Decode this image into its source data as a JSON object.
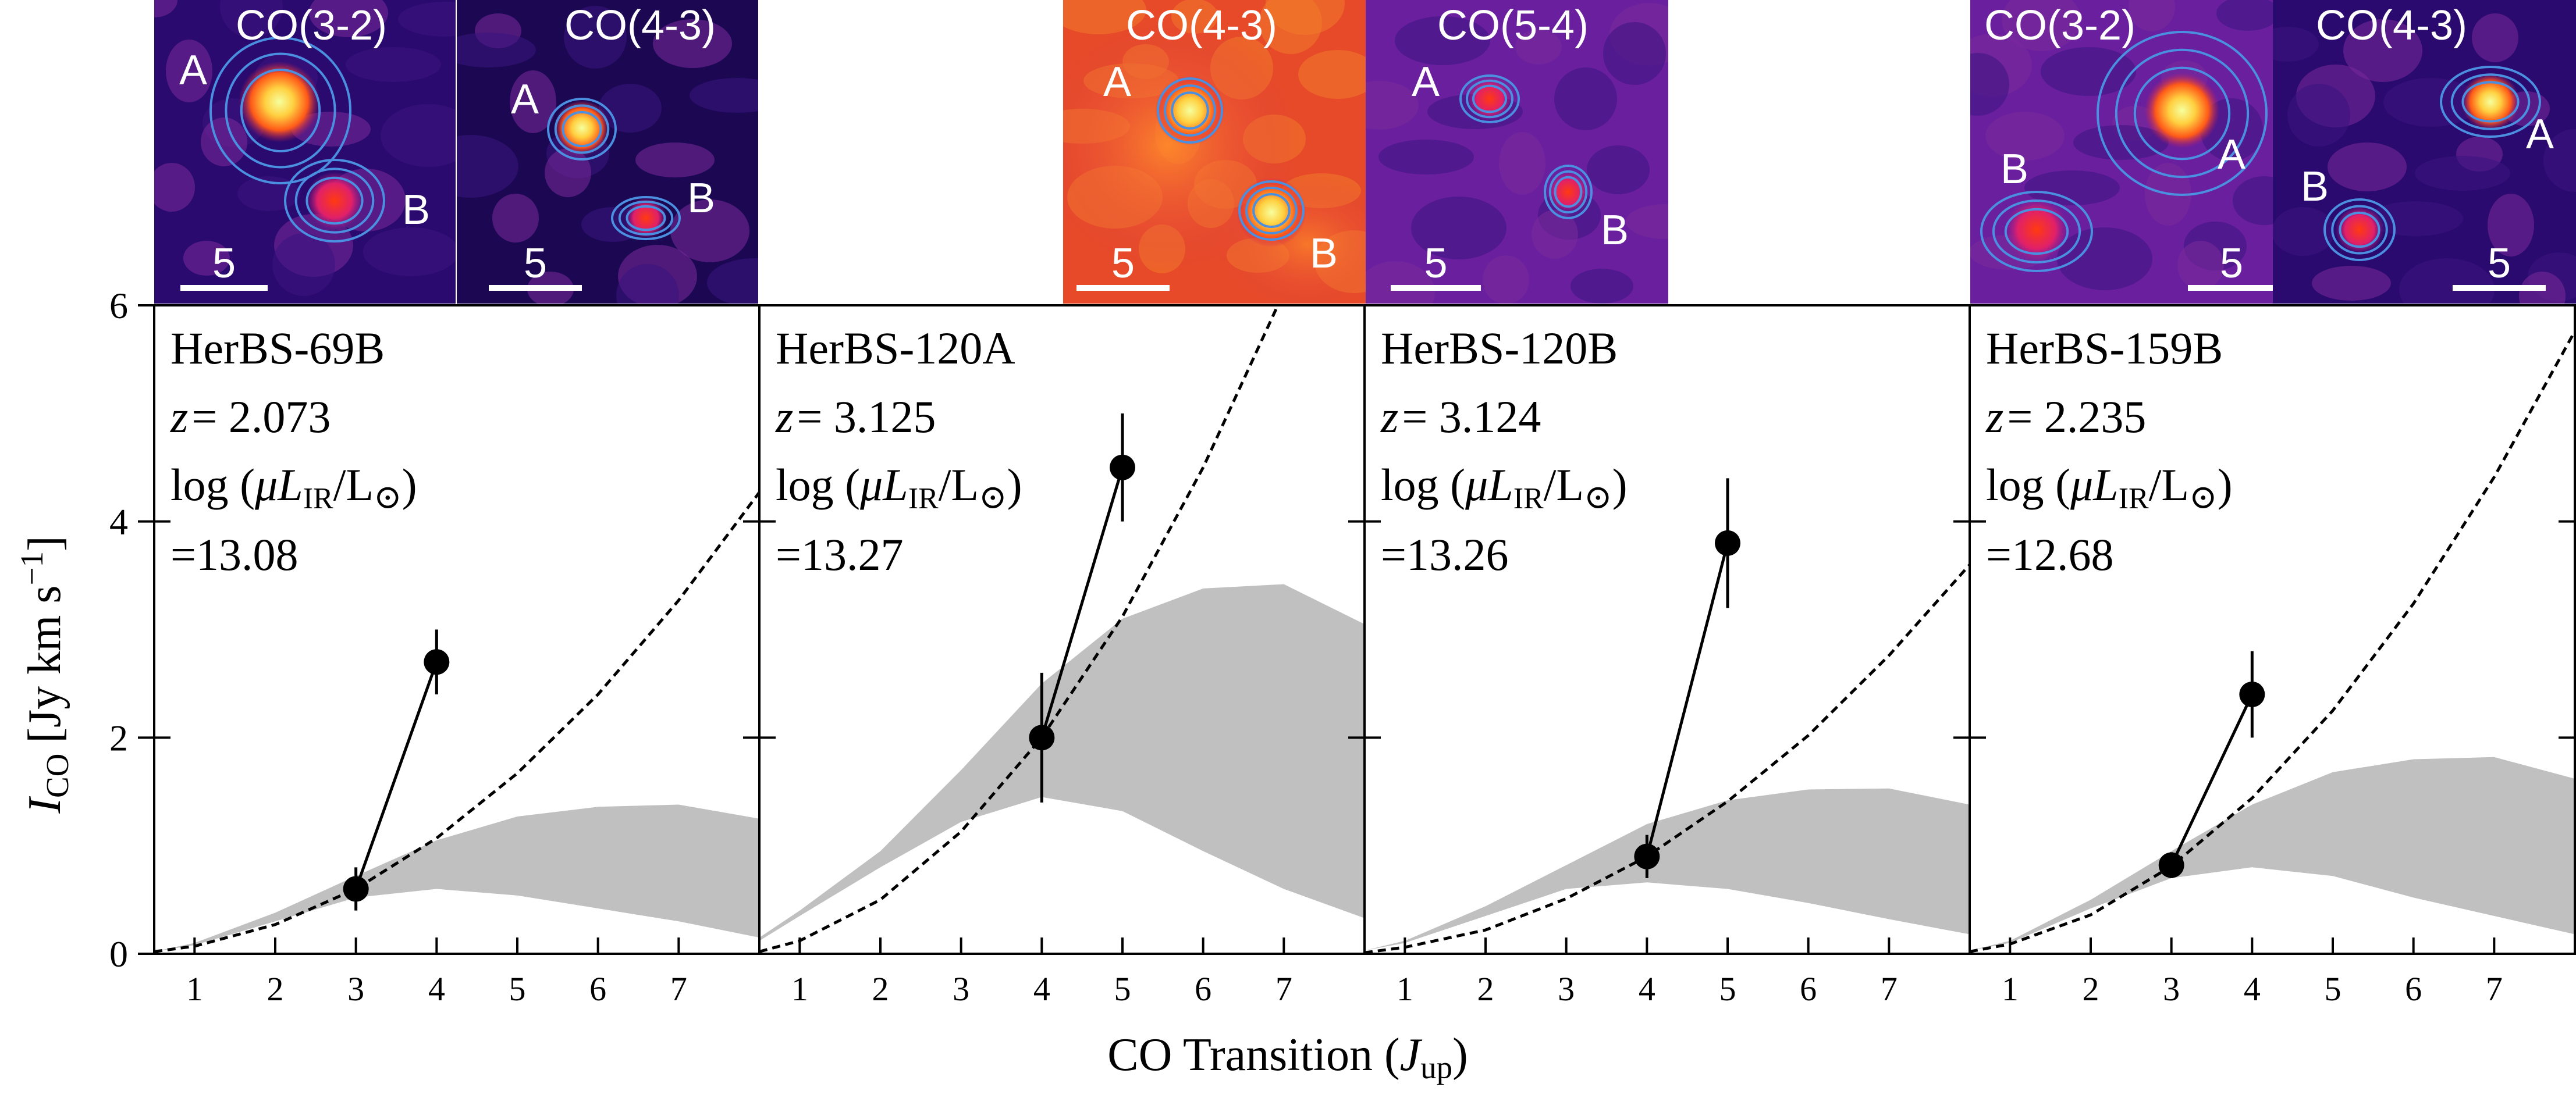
{
  "figure": {
    "x_axis_label": "CO Transition (",
    "x_axis_label_var": "J",
    "x_axis_label_sub": "up",
    "x_axis_label_close": ")",
    "y_axis_label_var": "I",
    "y_axis_label_sub": "CO",
    "y_axis_label_unit": "[Jy km s",
    "y_axis_label_exp": "−1",
    "y_axis_label_close": "]",
    "log_text": "log (",
    "mu_text": "μ",
    "L_text": "L",
    "ir_text": "IR",
    "lsun_text": "/L",
    "sun_symbol": "⊙",
    "close_paren": ")",
    "z_var": "z",
    "z_eq": "= ",
    "scale_bar_label": "5",
    "colors": {
      "axis": "#000000",
      "band": "#c0c0c0",
      "data": "#000000",
      "map_bg": "#2a0a6e",
      "contour": "#4a8fe0"
    }
  },
  "chart_data": [
    {
      "type": "line",
      "name": "HerBS-69B",
      "z": "2.073",
      "log_lir": "=13.08",
      "xlim": [
        0.5,
        8.0
      ],
      "ylim": [
        0,
        6
      ],
      "x_ticks": [
        "1",
        "2",
        "3",
        "4",
        "5",
        "6",
        "7"
      ],
      "y_ticks": [
        "0",
        "2",
        "4",
        "6"
      ],
      "points": [
        {
          "x": 3,
          "y": 0.6,
          "err": 0.2
        },
        {
          "x": 4,
          "y": 2.7,
          "err": 0.3
        }
      ],
      "dashed_curve": {
        "x": [
          0.5,
          1,
          2,
          3,
          4,
          5,
          6,
          7,
          8
        ],
        "y": [
          0.02,
          0.07,
          0.27,
          0.6,
          1.07,
          1.67,
          2.4,
          3.27,
          4.27
        ]
      },
      "band_upper": {
        "x": [
          0.5,
          1,
          2,
          3,
          4,
          5,
          6,
          7,
          8
        ],
        "y": [
          0.02,
          0.1,
          0.38,
          0.72,
          1.05,
          1.27,
          1.36,
          1.38,
          1.25
        ]
      },
      "band_lower": {
        "x": [
          0.5,
          1,
          2,
          3,
          4,
          5,
          6,
          7,
          8
        ],
        "y": [
          0.02,
          0.08,
          0.3,
          0.52,
          0.6,
          0.54,
          0.42,
          0.3,
          0.15
        ]
      },
      "maps": [
        {
          "label": "CO(3-2)",
          "sources": [
            {
              "name": "A"
            },
            {
              "name": "B"
            }
          ]
        },
        {
          "label": "CO(4-3)",
          "sources": [
            {
              "name": "A"
            },
            {
              "name": "B"
            }
          ]
        }
      ]
    },
    {
      "type": "line",
      "name": "HerBS-120A",
      "z": "3.125",
      "log_lir": "=13.27",
      "xlim": [
        0.5,
        8.0
      ],
      "ylim": [
        0,
        6
      ],
      "x_ticks": [
        "1",
        "2",
        "3",
        "4",
        "5",
        "6",
        "7"
      ],
      "y_ticks": [
        "0",
        "2",
        "4",
        "6"
      ],
      "points": [
        {
          "x": 4,
          "y": 2.0,
          "err": 0.6
        },
        {
          "x": 5,
          "y": 4.5,
          "err": 0.5
        }
      ],
      "dashed_curve": {
        "x": [
          0.5,
          1,
          2,
          3,
          4,
          5,
          6,
          7,
          7.35
        ],
        "y": [
          0.02,
          0.12,
          0.5,
          1.13,
          2.0,
          3.12,
          4.5,
          6.12,
          6.7
        ]
      },
      "band_upper": {
        "x": [
          0.5,
          1,
          2,
          3,
          4,
          5,
          6,
          7,
          8
        ],
        "y": [
          0.15,
          0.4,
          0.95,
          1.7,
          2.5,
          3.1,
          3.38,
          3.42,
          3.05
        ]
      },
      "band_lower": {
        "x": [
          0.5,
          1,
          2,
          3,
          4,
          5,
          6,
          7,
          8
        ],
        "y": [
          0.12,
          0.35,
          0.8,
          1.22,
          1.45,
          1.32,
          0.95,
          0.6,
          0.33
        ]
      },
      "maps": [
        {
          "label": "CO(4-3)",
          "sources": [
            {
              "name": "A"
            },
            {
              "name": "B"
            }
          ]
        },
        {
          "label": "CO(5-4)",
          "sources": [
            {
              "name": "A"
            },
            {
              "name": "B"
            }
          ]
        }
      ]
    },
    {
      "type": "line",
      "name": "HerBS-120B",
      "z": "3.124",
      "log_lir": "=13.26",
      "xlim": [
        0.5,
        8.0
      ],
      "ylim": [
        0,
        6
      ],
      "x_ticks": [
        "1",
        "2",
        "3",
        "4",
        "5",
        "6",
        "7"
      ],
      "y_ticks": [
        "0",
        "2",
        "4",
        "6"
      ],
      "points": [
        {
          "x": 4,
          "y": 0.9,
          "err": 0.2
        },
        {
          "x": 5,
          "y": 3.8,
          "err": 0.6
        }
      ],
      "dashed_curve": {
        "x": [
          0.5,
          1,
          2,
          3,
          4,
          5,
          6,
          7,
          8
        ],
        "y": [
          0.01,
          0.06,
          0.22,
          0.51,
          0.9,
          1.41,
          2.02,
          2.76,
          3.6
        ]
      },
      "band_upper": {
        "x": [
          0.5,
          1,
          2,
          3,
          4,
          5,
          6,
          7,
          8
        ],
        "y": [
          0.03,
          0.12,
          0.44,
          0.82,
          1.2,
          1.42,
          1.52,
          1.53,
          1.38
        ]
      },
      "band_lower": {
        "x": [
          0.5,
          1,
          2,
          3,
          4,
          5,
          6,
          7,
          8
        ],
        "y": [
          0.03,
          0.1,
          0.35,
          0.6,
          0.66,
          0.6,
          0.47,
          0.32,
          0.18
        ]
      },
      "maps": []
    },
    {
      "type": "line",
      "name": "HerBS-159B",
      "z": "2.235",
      "log_lir": "=12.68",
      "xlim": [
        0.5,
        8.0
      ],
      "ylim": [
        0,
        6
      ],
      "x_ticks": [
        "1",
        "2",
        "3",
        "4",
        "5",
        "6",
        "7"
      ],
      "y_ticks": [
        "0",
        "2",
        "4",
        "6"
      ],
      "points": [
        {
          "x": 3,
          "y": 0.82,
          "err": 0.12
        },
        {
          "x": 4,
          "y": 2.4,
          "err": 0.4
        }
      ],
      "dashed_curve": {
        "x": [
          0.5,
          1,
          2,
          3,
          4,
          5,
          6,
          7,
          8
        ],
        "y": [
          0.02,
          0.09,
          0.36,
          0.81,
          1.44,
          2.25,
          3.24,
          4.41,
          5.76
        ]
      },
      "band_upper": {
        "x": [
          0.5,
          1,
          2,
          3,
          4,
          5,
          6,
          7,
          8
        ],
        "y": [
          0.03,
          0.12,
          0.5,
          0.95,
          1.38,
          1.68,
          1.8,
          1.82,
          1.62
        ]
      },
      "band_lower": {
        "x": [
          0.5,
          1,
          2,
          3,
          4,
          5,
          6,
          7,
          8
        ],
        "y": [
          0.03,
          0.1,
          0.42,
          0.7,
          0.8,
          0.72,
          0.52,
          0.35,
          0.18
        ]
      },
      "maps": [
        {
          "label": "CO(3-2)",
          "sources": [
            {
              "name": "A"
            },
            {
              "name": "B"
            }
          ]
        },
        {
          "label": "CO(4-3)",
          "sources": [
            {
              "name": "A"
            },
            {
              "name": "B"
            }
          ]
        }
      ]
    }
  ]
}
